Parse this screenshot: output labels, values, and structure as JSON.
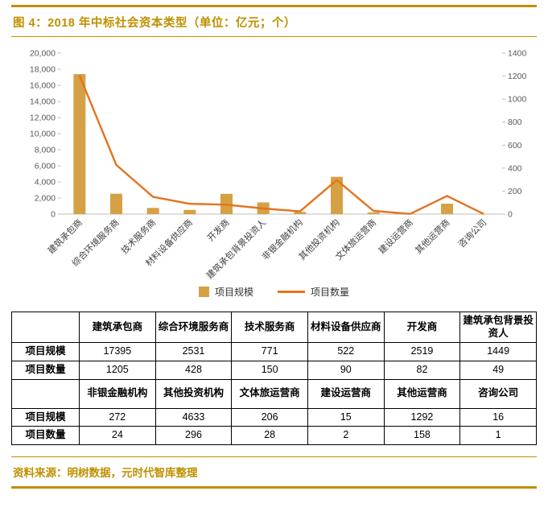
{
  "title": "图 4：2018 年中标社会资本类型（单位：亿元；个）",
  "source": "资料来源：明树数据，元时代智库整理",
  "colors": {
    "accent": "#bf9000",
    "bar": "#d6a044",
    "line": "#e4731f",
    "axis": "#bfbfbf",
    "tick_text": "#595959",
    "label_text": "#404040"
  },
  "chart_data": {
    "type": "bar+line combo",
    "categories": [
      "建筑承包商",
      "综合环境服务商",
      "技术服务商",
      "材料设备供应商",
      "开发商",
      "建筑承包背景投资人",
      "非银金融机构",
      "其他投资机构",
      "文体旅运营商",
      "建设运营商",
      "其他运营商",
      "咨询公司"
    ],
    "series": [
      {
        "name": "项目规模",
        "type": "bar",
        "axis": "left",
        "values": [
          17395,
          2531,
          771,
          522,
          2519,
          1449,
          272,
          4633,
          206,
          15,
          1292,
          16
        ]
      },
      {
        "name": "项目数量",
        "type": "line",
        "axis": "right",
        "values": [
          1205,
          428,
          150,
          90,
          82,
          49,
          24,
          296,
          28,
          2,
          158,
          1
        ]
      }
    ],
    "left_axis": {
      "min": 0,
      "max": 20000,
      "step": 2000
    },
    "right_axis": {
      "min": 0,
      "max": 1400,
      "step": 200
    },
    "legend_position": "bottom",
    "grid": false
  },
  "table": {
    "row_headers": [
      "项目规模",
      "项目数量"
    ],
    "groups": [
      {
        "columns": [
          "建筑承包商",
          "综合环境服务商",
          "技术服务商",
          "材料设备供应商",
          "开发商",
          "建筑承包背景投资人"
        ],
        "rows": [
          [
            17395,
            2531,
            771,
            522,
            2519,
            1449
          ],
          [
            1205,
            428,
            150,
            90,
            82,
            49
          ]
        ]
      },
      {
        "columns": [
          "非银金融机构",
          "其他投资机构",
          "文体旅运营商",
          "建设运营商",
          "其他运营商",
          "咨询公司"
        ],
        "rows": [
          [
            272,
            4633,
            206,
            15,
            1292,
            16
          ],
          [
            24,
            296,
            28,
            2,
            158,
            1
          ]
        ]
      }
    ]
  }
}
